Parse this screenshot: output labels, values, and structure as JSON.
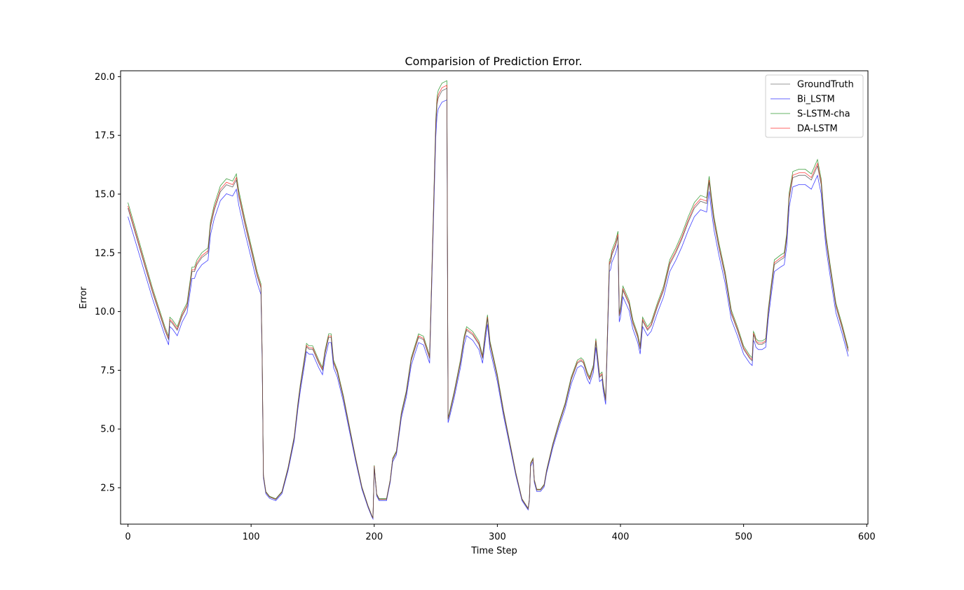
{
  "chart_data": {
    "type": "line",
    "title": "Comparision of Prediction Error.",
    "xlabel": "Time Step",
    "ylabel": "Error",
    "xlim": [
      -6,
      601
    ],
    "ylim": [
      0.95,
      20.25
    ],
    "xticks": [
      0,
      100,
      200,
      300,
      400,
      500,
      600
    ],
    "yticks": [
      2.5,
      5.0,
      7.5,
      10.0,
      12.5,
      15.0,
      17.5,
      20.0
    ],
    "xtick_labels": [
      "0",
      "100",
      "200",
      "300",
      "400",
      "500",
      "600"
    ],
    "ytick_labels": [
      "2.5",
      "5.0",
      "7.5",
      "10.0",
      "12.5",
      "15.0",
      "17.5",
      "20.0"
    ],
    "grid": false,
    "legend_position": "top-right",
    "base_x": [
      0,
      10,
      20,
      30,
      33,
      34,
      36,
      40,
      44,
      48,
      52,
      54,
      56,
      60,
      65,
      67,
      70,
      75,
      80,
      85,
      88,
      90,
      95,
      100,
      105,
      108,
      109,
      110,
      112,
      115,
      120,
      125,
      130,
      135,
      138,
      140,
      143,
      145,
      147,
      150,
      155,
      158,
      160,
      163,
      165,
      167,
      170,
      175,
      180,
      185,
      190,
      195,
      198,
      199,
      200,
      202,
      204,
      206,
      210,
      213,
      215,
      218,
      222,
      226,
      230,
      233,
      236,
      240,
      245,
      250,
      251,
      252,
      255,
      259,
      260,
      261,
      265,
      270,
      273,
      275,
      280,
      285,
      288,
      290,
      292,
      294,
      300,
      305,
      310,
      315,
      320,
      325,
      326,
      327,
      329,
      330,
      332,
      335,
      338,
      340,
      345,
      350,
      355,
      360,
      365,
      368,
      370,
      373,
      375,
      378,
      380,
      383,
      385,
      386,
      388,
      391,
      392,
      393,
      396,
      398,
      399,
      400,
      402,
      407,
      410,
      414,
      416,
      418,
      422,
      425,
      430,
      435,
      440,
      445,
      450,
      455,
      460,
      465,
      470,
      472,
      474,
      476,
      480,
      485,
      490,
      495,
      500,
      505,
      507,
      508,
      509,
      510,
      512,
      515,
      518,
      520,
      522,
      525,
      530,
      533,
      535,
      537,
      540,
      545,
      550,
      555,
      560,
      563,
      565,
      567,
      570,
      575,
      580,
      585,
      590,
      595,
      601
    ],
    "series": [
      {
        "name": "GroundTruth",
        "color": "#555555",
        "offset": 0.0,
        "y": [
          14.4,
          12.6,
          10.8,
          9.2,
          8.8,
          9.6,
          9.5,
          9.2,
          9.8,
          10.2,
          11.7,
          11.7,
          12.0,
          12.3,
          12.5,
          13.6,
          14.3,
          15.1,
          15.4,
          15.3,
          15.6,
          14.9,
          13.7,
          12.6,
          11.5,
          11.0,
          8.0,
          3.0,
          2.3,
          2.1,
          2.0,
          2.3,
          3.3,
          4.6,
          6.0,
          6.8,
          7.8,
          8.5,
          8.4,
          8.4,
          7.8,
          7.5,
          8.2,
          8.9,
          8.9,
          7.8,
          7.4,
          6.3,
          5.0,
          3.7,
          2.5,
          1.7,
          1.3,
          1.2,
          3.4,
          2.2,
          2.0,
          2.0,
          2.0,
          2.8,
          3.7,
          4.0,
          5.6,
          6.5,
          7.9,
          8.4,
          8.9,
          8.8,
          8.0,
          17.9,
          18.8,
          19.1,
          19.4,
          19.5,
          5.4,
          5.6,
          6.5,
          7.8,
          8.8,
          9.2,
          9.0,
          8.6,
          8.0,
          8.9,
          9.7,
          8.6,
          7.2,
          5.7,
          4.4,
          3.1,
          2.0,
          1.6,
          2.0,
          3.5,
          3.7,
          2.8,
          2.4,
          2.4,
          2.6,
          3.2,
          4.3,
          5.2,
          6.0,
          7.1,
          7.8,
          7.9,
          7.8,
          7.3,
          7.1,
          7.6,
          8.7,
          7.2,
          7.3,
          6.8,
          6.2,
          12.0,
          12.1,
          12.4,
          12.8,
          13.2,
          9.8,
          10.0,
          10.9,
          10.3,
          9.5,
          8.9,
          8.4,
          9.6,
          9.2,
          9.4,
          10.2,
          10.9,
          12.0,
          12.5,
          13.1,
          13.8,
          14.4,
          14.7,
          14.6,
          15.5,
          14.6,
          13.8,
          12.7,
          11.5,
          9.9,
          9.2,
          8.4,
          8.0,
          7.9,
          9.0,
          8.9,
          8.7,
          8.6,
          8.6,
          8.7,
          9.9,
          10.8,
          12.0,
          12.2,
          12.3,
          13.1,
          14.8,
          15.7,
          15.8,
          15.8,
          15.6,
          16.2,
          15.4,
          14.1,
          13.0,
          11.9,
          10.2,
          9.3,
          8.3
        ]
      },
      {
        "name": "Bi_LSTM",
        "color": "#0000ff",
        "offset": -0.3
      },
      {
        "name": "S-LSTM-cha",
        "color": "#008000",
        "offset": 0.2
      },
      {
        "name": "DA-LSTM",
        "color": "#ff0000",
        "offset": 0.08
      }
    ]
  }
}
